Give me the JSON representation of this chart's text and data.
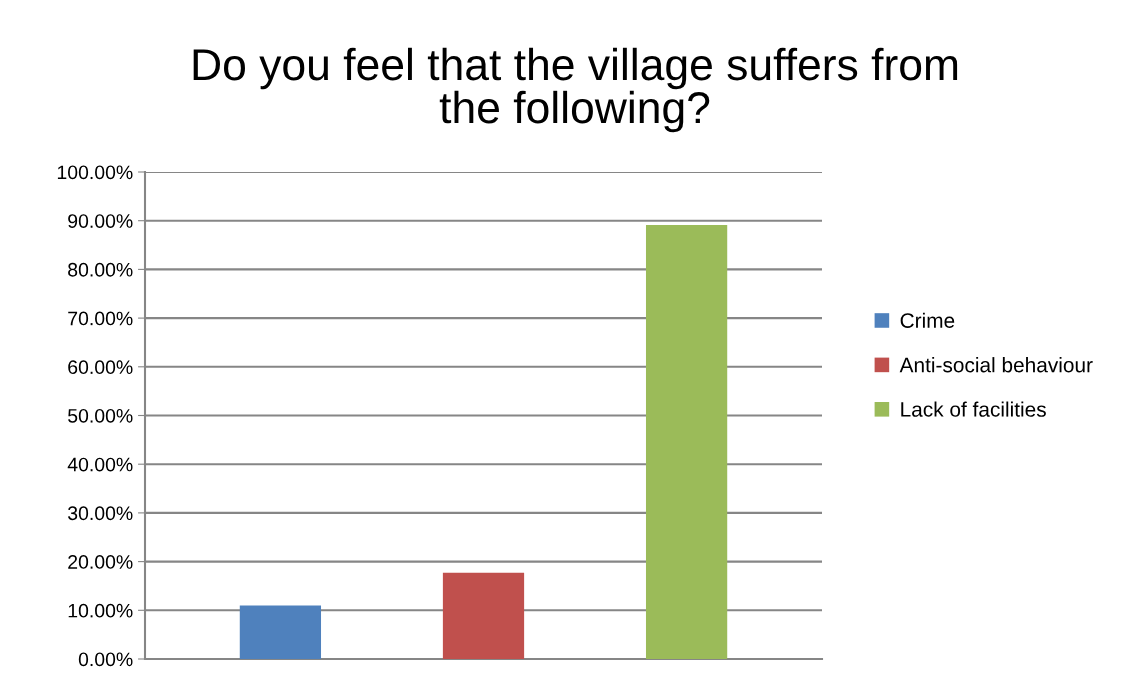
{
  "chart_data": {
    "type": "bar",
    "title": "Do you feel that the village suffers from\nthe following?",
    "categories": [
      null
    ],
    "series": [
      {
        "name": "Crime",
        "color": "#4f81bd",
        "values": [
          11.0
        ]
      },
      {
        "name": "Anti-social behaviour",
        "color": "#c0504d",
        "values": [
          17.7
        ]
      },
      {
        "name": "Lack of facilities",
        "color": "#9bbb59",
        "values": [
          89.1
        ]
      }
    ],
    "ylim": [
      0,
      100
    ],
    "yticks": [
      {
        "value": 0,
        "label": "0.00%"
      },
      {
        "value": 10,
        "label": "10.00%"
      },
      {
        "value": 20,
        "label": "20.00%"
      },
      {
        "value": 30,
        "label": "30.00%"
      },
      {
        "value": 40,
        "label": "40.00%"
      },
      {
        "value": 50,
        "label": "50.00%"
      },
      {
        "value": 60,
        "label": "60.00%"
      },
      {
        "value": 70,
        "label": "70.00%"
      },
      {
        "value": 80,
        "label": "80.00%"
      },
      {
        "value": 90,
        "label": "90.00%"
      },
      {
        "value": 100,
        "label": "100.00%"
      }
    ],
    "grid": "y",
    "legend": "right"
  }
}
